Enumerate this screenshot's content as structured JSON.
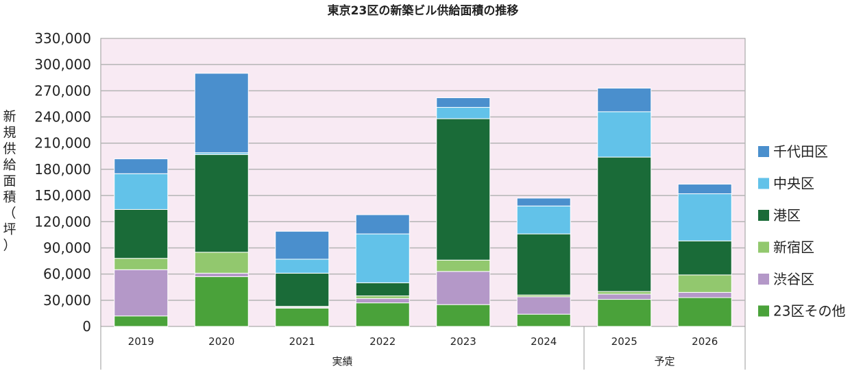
{
  "chart_data": {
    "type": "bar",
    "stacked": true,
    "title": "東京23区の新築ビル供給面積の推移",
    "ylabel": "新規供給面積（坪）",
    "ylim": [
      0,
      330000
    ],
    "ytick_step": 30000,
    "grid": true,
    "legend_position": "right",
    "categories": [
      "2019",
      "2020",
      "2021",
      "2022",
      "2023",
      "2024",
      "2025",
      "2026"
    ],
    "groups": [
      {
        "label": "実績",
        "categories": [
          "2019",
          "2020",
          "2021",
          "2022",
          "2023",
          "2024"
        ]
      },
      {
        "label": "予定",
        "categories": [
          "2025",
          "2026"
        ]
      }
    ],
    "series": [
      {
        "name": "23区その他",
        "color": "#4aa23a",
        "values": [
          12000,
          57000,
          21000,
          27000,
          25000,
          14000,
          31000,
          33000
        ]
      },
      {
        "name": "渋谷区",
        "color": "#b498c8",
        "values": [
          53000,
          4000,
          1000,
          5000,
          38000,
          20000,
          6000,
          6000
        ]
      },
      {
        "name": "新宿区",
        "color": "#92c86e",
        "values": [
          13000,
          24000,
          1000,
          3000,
          13000,
          2000,
          3000,
          20000
        ]
      },
      {
        "name": "港区",
        "color": "#1a6b38",
        "values": [
          56000,
          112000,
          38000,
          15000,
          162000,
          70000,
          154000,
          39000
        ]
      },
      {
        "name": "中央区",
        "color": "#62c2e9",
        "values": [
          41000,
          2000,
          16000,
          56000,
          13000,
          32000,
          52000,
          54000
        ]
      },
      {
        "name": "千代田区",
        "color": "#4a8fcd",
        "values": [
          17000,
          91000,
          32000,
          22000,
          11000,
          9000,
          27000,
          11000
        ]
      }
    ]
  }
}
